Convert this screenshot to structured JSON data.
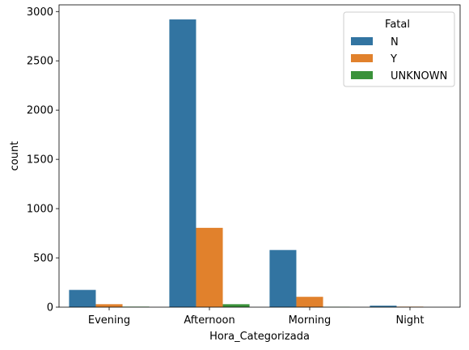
{
  "chart_data": {
    "type": "bar",
    "title": "",
    "xlabel": "Hora_Categorizada",
    "ylabel": "count",
    "categories": [
      "Evening",
      "Afternoon",
      "Morning",
      "Night"
    ],
    "series": [
      {
        "name": "N",
        "color": "#3274a1",
        "values": [
          175,
          2920,
          580,
          15
        ]
      },
      {
        "name": "Y",
        "color": "#e1812c",
        "values": [
          30,
          805,
          105,
          5
        ]
      },
      {
        "name": "UNKNOWN",
        "color": "#3a923a",
        "values": [
          5,
          30,
          3,
          0
        ]
      }
    ],
    "ylim": [
      0,
      3068
    ],
    "yticks": [
      0,
      500,
      1000,
      1500,
      2000,
      2500,
      3000
    ],
    "grid": false,
    "legend": {
      "title": "Fatal",
      "position": "top-right"
    }
  }
}
